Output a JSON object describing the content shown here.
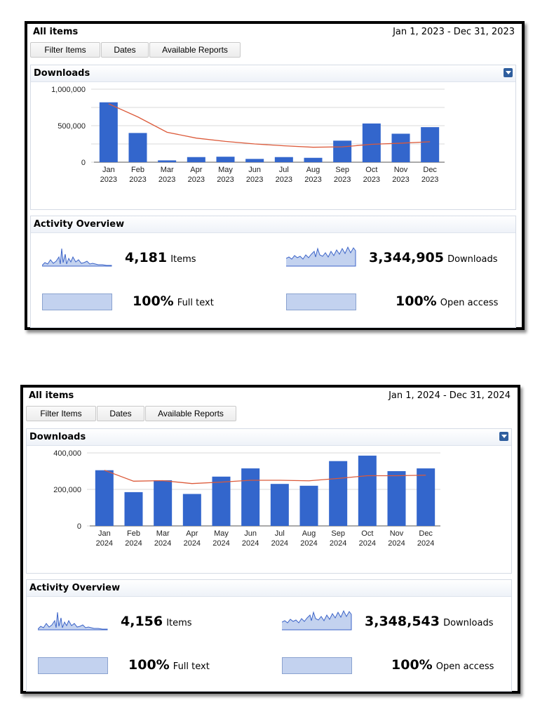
{
  "panels": [
    {
      "title": "All items",
      "date_range": "Jan 1, 2023 - Dec 31, 2023",
      "tabs": [
        "Filter Items",
        "Dates",
        "Available Reports"
      ],
      "downloads_title": "Downloads",
      "overview_title": "Activity Overview",
      "items_count": "4,181",
      "items_label": "Items",
      "downloads_count": "3,344,905",
      "downloads_label": "Downloads",
      "fulltext_pct": "100%",
      "fulltext_label": "Full text",
      "openaccess_pct": "100%",
      "openaccess_label": "Open access"
    },
    {
      "title": "All items",
      "date_range": "Jan 1, 2024 - Dec 31, 2024",
      "tabs": [
        "Filter Items",
        "Dates",
        "Available Reports"
      ],
      "downloads_title": "Downloads",
      "overview_title": "Activity Overview",
      "items_count": "4,156",
      "items_label": "Items",
      "downloads_count": "3,348,543",
      "downloads_label": "Downloads",
      "fulltext_pct": "100%",
      "fulltext_label": "Full text",
      "openaccess_pct": "100%",
      "openaccess_label": "Open access"
    }
  ],
  "colors": {
    "bar": "#3366cc",
    "trend": "#dc5a3a",
    "grid": "#d9d9d9",
    "spark": "#3c64c8"
  },
  "chart_data": [
    {
      "type": "bar",
      "categories": [
        "Jan 2023",
        "Feb 2023",
        "Mar 2023",
        "Apr 2023",
        "May 2023",
        "Jun 2023",
        "Jul 2023",
        "Aug 2023",
        "Sep 2023",
        "Oct 2023",
        "Nov 2023",
        "Dec 2023"
      ],
      "month_labels": [
        "Jan",
        "Feb",
        "Mar",
        "Apr",
        "May",
        "Jun",
        "Jul",
        "Aug",
        "Sep",
        "Oct",
        "Nov",
        "Dec"
      ],
      "year_label": "2023",
      "values": [
        820000,
        400000,
        25000,
        70000,
        75000,
        45000,
        70000,
        60000,
        295000,
        530000,
        390000,
        480000
      ],
      "trend": [
        800000,
        620000,
        410000,
        330000,
        285000,
        250000,
        225000,
        205000,
        210000,
        245000,
        260000,
        280000
      ],
      "yticks": [
        0,
        500000,
        1000000
      ],
      "ytick_labels": [
        "0",
        "500,000",
        "1,000,000"
      ],
      "ylim": [
        0,
        1000000
      ],
      "gridlines": [
        0,
        250000,
        500000,
        750000,
        1000000
      ],
      "grid": true
    },
    {
      "type": "bar",
      "categories": [
        "Jan 2024",
        "Feb 2024",
        "Mar 2024",
        "Apr 2024",
        "May 2024",
        "Jun 2024",
        "Jul 2024",
        "Aug 2024",
        "Sep 2024",
        "Oct 2024",
        "Nov 2024",
        "Dec 2024"
      ],
      "month_labels": [
        "Jan",
        "Feb",
        "Mar",
        "Apr",
        "May",
        "Jun",
        "Jul",
        "Aug",
        "Sep",
        "Oct",
        "Nov",
        "Dec"
      ],
      "year_label": "2024",
      "values": [
        305000,
        185000,
        250000,
        175000,
        270000,
        315000,
        230000,
        220000,
        355000,
        385000,
        300000,
        315000
      ],
      "trend": [
        305000,
        245000,
        248000,
        232000,
        240000,
        250000,
        250000,
        247000,
        260000,
        275000,
        275000,
        278000
      ],
      "yticks": [
        0,
        200000,
        400000
      ],
      "ytick_labels": [
        "0",
        "200,000",
        "400,000"
      ],
      "ylim": [
        0,
        400000
      ],
      "gridlines": [
        0,
        200000,
        400000
      ],
      "grid": true
    }
  ]
}
